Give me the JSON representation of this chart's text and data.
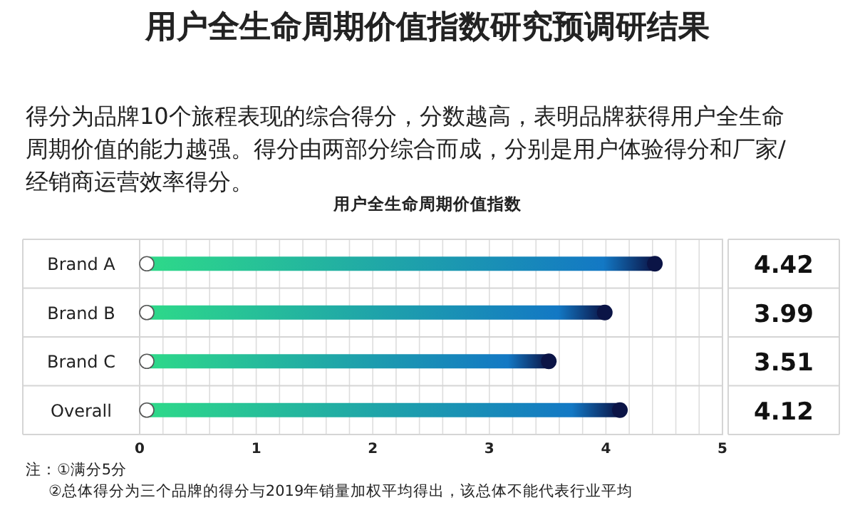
{
  "chart_data": {
    "type": "lollipop",
    "orientation": "horizontal",
    "title": "用户全生命周期价值指数",
    "annotations": [
      "用户全生命周期价值指数研究预调研结果",
      "得分为品牌10个旅程表现的综合得分，分数越高，表明品牌获得用户全生命周期价值的能力越强。得分由两部分综合而成，分别是用户体验得分和厂家/经销商运营效率得分。",
      "注：①满分5分",
      "②总体得分为三个品牌的得分与2019年销量加权平均得出，该总体不能代表行业平均"
    ],
    "categories": [
      "Brand A",
      "Brand B",
      "Brand C",
      "Overall"
    ],
    "series": [
      {
        "color": "#0b1446",
        "values": [
          4.42,
          3.99,
          3.51,
          4.12
        ]
      }
    ],
    "xlim": [
      0,
      5
    ],
    "xticks": [
      0,
      1,
      2,
      3,
      4,
      5
    ],
    "grid": true,
    "marker": "circle",
    "data_labels": true
  }
}
